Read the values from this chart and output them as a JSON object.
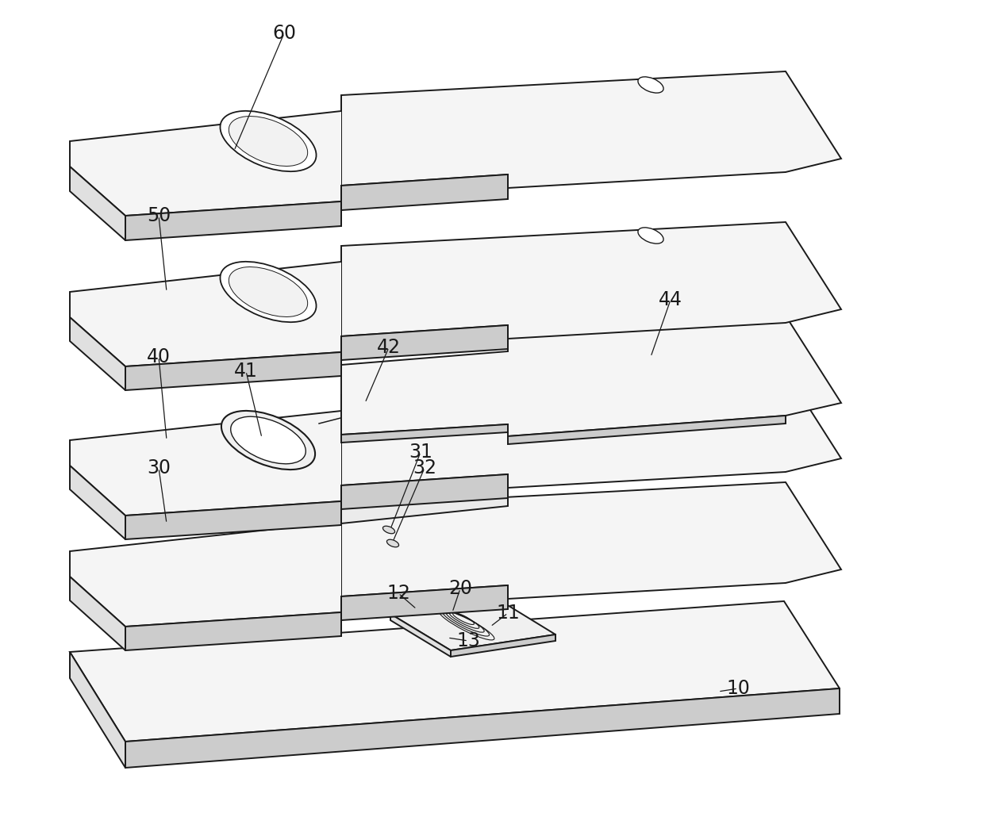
{
  "bg_color": "#ffffff",
  "line_color": "#1a1a1a",
  "lw": 1.4,
  "face_top": "#f5f5f5",
  "face_left": "#e0e0e0",
  "face_front": "#cccccc",
  "label_fs": 17
}
